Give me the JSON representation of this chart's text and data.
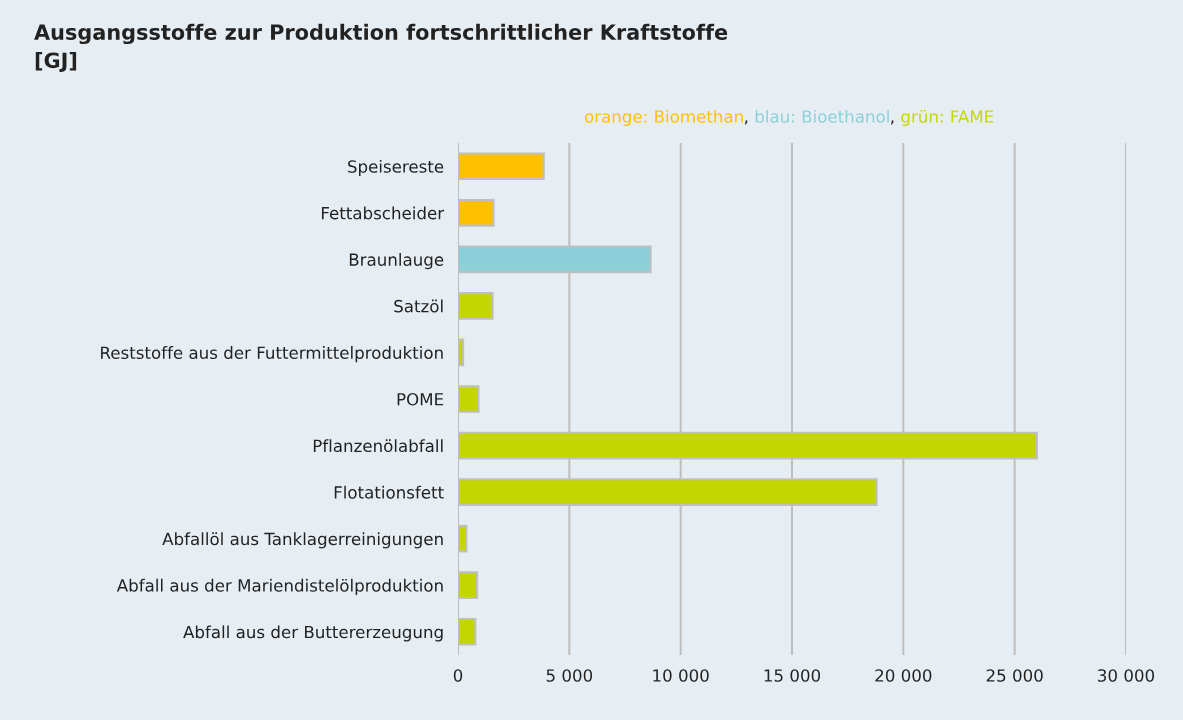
{
  "chart_data": {
    "type": "bar",
    "orientation": "horizontal",
    "stacked": true,
    "title": "Ausgangsstoffe zur Produktion fortschrittlicher Kraftstoffe\n[GJ]",
    "subtitle": "orange: Biomethan, blau: Bioethanol, grün: FAME",
    "categories": [
      "Speisereste",
      "Fettabscheider",
      "Braunlauge",
      "Satzöl",
      "Reststoffe aus der Futtermittelproduktion",
      "POME",
      "Pflanzenölabfall",
      "Flotationsfett",
      "Abfallöl aus Tanklagerreinigungen",
      "Abfall aus der Mariendistelölproduktion",
      "Abfall aus der Buttererzeugung"
    ],
    "series": [
      {
        "color": "#ffc000",
        "values": [
          3850,
          1600,
          null,
          null,
          null,
          null,
          null,
          null,
          null,
          null,
          null
        ]
      },
      {
        "color": "#8ccfd9",
        "values": [
          null,
          null,
          8650,
          null,
          null,
          null,
          null,
          null,
          null,
          null,
          null
        ]
      },
      {
        "color": "#c4d600",
        "values": [
          null,
          null,
          null,
          1550,
          230,
          920,
          26000,
          18800,
          380,
          860,
          780
        ]
      }
    ],
    "xlim": [
      0,
      30000
    ],
    "xticks": [
      0,
      {
        "value": 5000,
        "label": "5 000"
      },
      {
        "value": 10000,
        "label": "10 000"
      },
      {
        "value": 15000,
        "label": "15 000"
      },
      {
        "value": 20000,
        "label": "20 000"
      },
      {
        "value": 25000,
        "label": "25 000"
      },
      {
        "value": 30000,
        "label": "30 000"
      }
    ],
    "grid": "x"
  }
}
